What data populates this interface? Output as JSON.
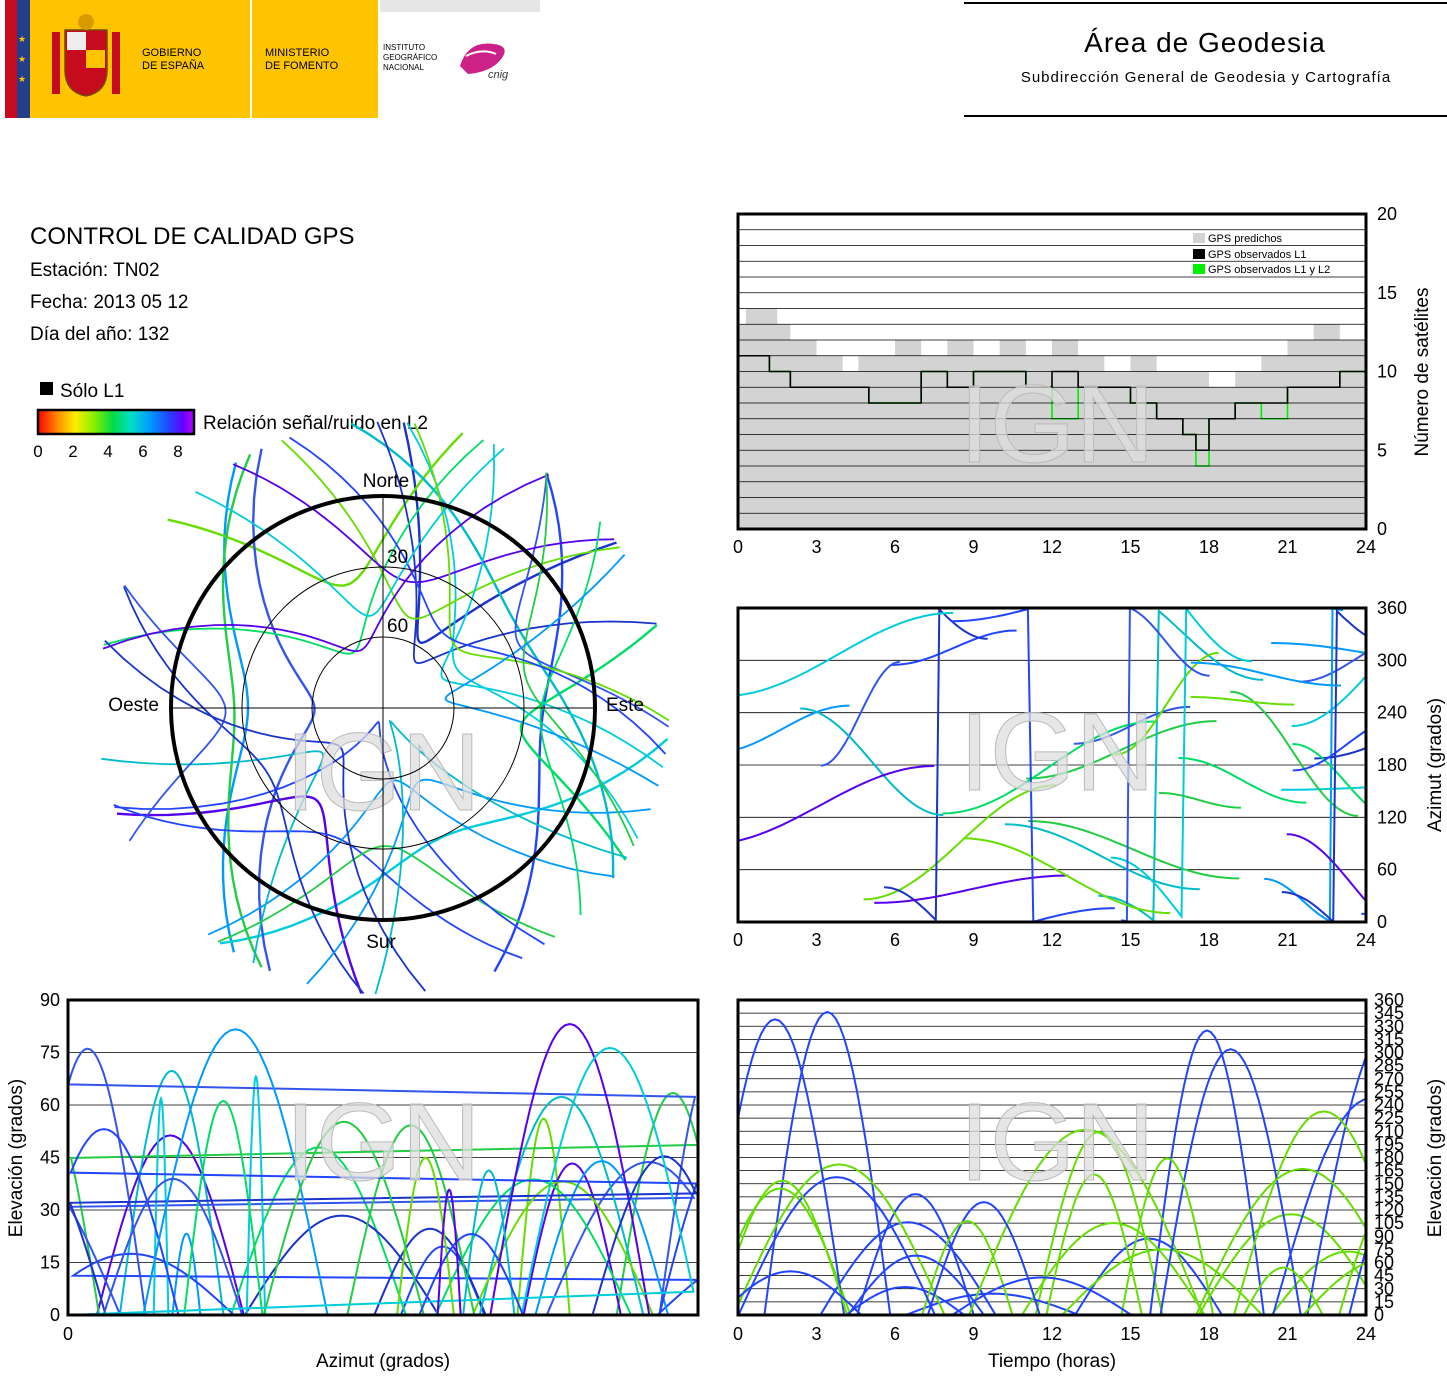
{
  "header": {
    "gobierno_label": "GOBIERNO\nDE ESPAÑA",
    "ministerio_label": "MINISTERIO\nDE FOMENTO",
    "ign_label": "INSTITUTO\nGEOGRÁFICO\nNACIONAL",
    "cnig_label": "cnig",
    "area_title": "Área de Geodesia",
    "area_subtitle": "Subdirección General de Geodesia y Cartografía"
  },
  "info": {
    "title": "CONTROL DE CALIDAD GPS",
    "station": "Estación: TN02",
    "date": "Fecha: 2013 05 12",
    "doy": "Día del año: 132",
    "l1_only_label": "Sólo L1",
    "snr_label": "Relación señal/ruido en L2",
    "snr_ticks": [
      "0",
      "2",
      "4",
      "6",
      "8"
    ]
  },
  "colors": {
    "snr_scale": [
      "#ff0000",
      "#ff8800",
      "#ffee00",
      "#88ee00",
      "#00dd44",
      "#00ddcc",
      "#0099ff",
      "#2244ff",
      "#6600ff",
      "#bb00ff"
    ],
    "predicted": "#d3d3d3",
    "observed_l1": "#000000",
    "observed_l1l2": "#00ee00",
    "spain_red": "#c60b1e",
    "spain_yellow": "#ffc400",
    "cnig_magenta": "#cc2288"
  },
  "watermark": "IGN",
  "chart_data": [
    {
      "id": "satellites",
      "type": "area",
      "xlabel": "",
      "ylabel": "Número de satélites",
      "xlim": [
        0,
        24
      ],
      "ylim": [
        0,
        20
      ],
      "x_ticks": [
        0,
        3,
        6,
        9,
        12,
        15,
        18,
        21,
        24
      ],
      "y_ticks": [
        0,
        5,
        10,
        15,
        20
      ],
      "grid": true,
      "legend": "top-right",
      "series": [
        {
          "name": "GPS predichos",
          "x": [
            0,
            0.3,
            1.5,
            2.0,
            3.0,
            4.0,
            4.6,
            5.0,
            6.0,
            7.0,
            8.0,
            9.0,
            10.0,
            11.0,
            12.0,
            13.0,
            14.0,
            15.0,
            16.0,
            17.0,
            18.0,
            19.0,
            19.6,
            20.0,
            21.0,
            22.0,
            23.0,
            24.0
          ],
          "values": [
            13,
            14,
            13,
            12,
            11,
            10,
            11,
            11,
            12,
            11,
            12,
            11,
            12,
            11,
            12,
            11,
            10,
            11,
            10,
            10,
            9,
            10,
            10,
            11,
            12,
            13,
            12,
            13
          ]
        },
        {
          "name": "GPS observados L1",
          "x": [
            0,
            0.5,
            1.2,
            2.0,
            3.0,
            4.0,
            5.0,
            6.0,
            7.0,
            8.0,
            9.0,
            10.0,
            11.0,
            12.0,
            13.0,
            14.0,
            15.0,
            16.0,
            17.0,
            17.5,
            18.0,
            19.0,
            20.0,
            21.0,
            22.0,
            23.0,
            24.0
          ],
          "values": [
            11,
            11,
            10,
            9,
            9,
            9,
            8,
            8,
            10,
            9,
            10,
            10,
            9,
            10,
            9,
            9,
            8,
            7,
            6,
            5,
            7,
            8,
            8,
            9,
            9,
            10,
            10
          ]
        },
        {
          "name": "GPS observados L1 y L2",
          "x": [
            0,
            0.5,
            1.2,
            2.0,
            3.0,
            4.0,
            5.0,
            6.0,
            7.0,
            8.0,
            9.0,
            10.0,
            11.0,
            12.0,
            13.0,
            14.0,
            15.0,
            16.0,
            17.0,
            17.5,
            18.0,
            19.0,
            20.0,
            21.0,
            22.0,
            23.0,
            24.0
          ],
          "values": [
            11,
            11,
            10,
            9,
            9,
            9,
            8,
            8,
            10,
            9,
            10,
            10,
            9,
            7,
            9,
            9,
            8,
            7,
            6,
            4,
            7,
            8,
            7,
            9,
            9,
            10,
            10
          ]
        }
      ]
    },
    {
      "id": "skyplot",
      "type": "scatter",
      "title": "",
      "directions": {
        "north": "Norte",
        "south": "Sur",
        "east": "Este",
        "west": "Oeste"
      },
      "rings": [
        30,
        60
      ],
      "ring_labels": [
        "30",
        "60"
      ],
      "colorscale_label": "Relación señal/ruido en L2"
    },
    {
      "id": "azimuth_time",
      "type": "scatter",
      "xlabel": "",
      "ylabel": "Azimut (grados)",
      "xlim": [
        0,
        24
      ],
      "ylim": [
        0,
        360
      ],
      "x_ticks": [
        0,
        3,
        6,
        9,
        12,
        15,
        18,
        21,
        24
      ],
      "y_ticks": [
        0,
        60,
        120,
        180,
        240,
        300,
        360
      ],
      "grid": true
    },
    {
      "id": "elevation_azimuth",
      "type": "scatter",
      "xlabel": "Azimut (grados)",
      "ylabel": "Elevación (grados)",
      "xlim": [
        0,
        360
      ],
      "ylim": [
        0,
        90
      ],
      "x_ticks": [
        0
      ],
      "y_ticks": [
        0,
        15,
        30,
        45,
        60,
        75,
        90
      ],
      "grid": true
    },
    {
      "id": "elevation_time",
      "type": "scatter",
      "xlabel": "Tiempo (horas)",
      "ylabel": "Elevación (grados)",
      "xlim": [
        0,
        24
      ],
      "ylim": [
        0,
        360
      ],
      "x_ticks": [
        0,
        3,
        6,
        9,
        12,
        15,
        18,
        21,
        24
      ],
      "y_ticks": [
        0,
        15,
        30,
        45,
        60,
        75,
        90,
        105,
        120,
        135,
        150,
        165,
        180,
        195,
        210,
        225,
        240,
        255,
        270,
        285,
        300,
        315,
        330,
        345,
        360
      ],
      "grid": true
    }
  ]
}
